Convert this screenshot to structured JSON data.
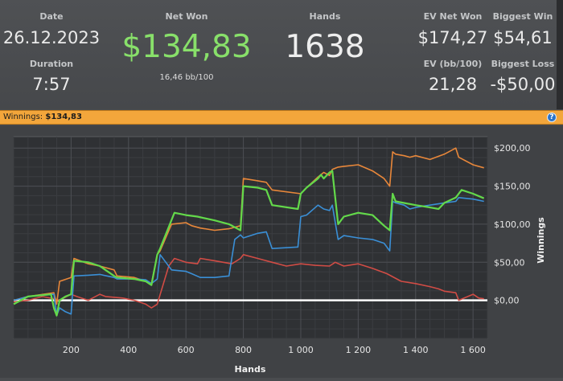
{
  "stats": {
    "date_label": "Date",
    "date_value": "26.12.2023",
    "duration_label": "Duration",
    "duration_value": "7:57",
    "net_won_label": "Net Won",
    "net_won_value": "$134,83",
    "bb_per_100": "16,46 bb/100",
    "hands_label": "Hands",
    "hands_value": "1638",
    "ev_net_won_label": "EV Net Won",
    "ev_net_won_value": "$174,27",
    "biggest_win_label": "Biggest Win",
    "biggest_win_value": "$54,61",
    "ev_bb_label": "EV (bb/100)",
    "ev_bb_value": "21,28",
    "biggest_loss_label": "Biggest Loss",
    "biggest_loss_value": "-$50,00"
  },
  "winnings_bar": {
    "label": "Winnings:",
    "value": "$134,83",
    "help_icon": "question-mark-icon"
  },
  "colors": {
    "green": "#63d94a",
    "orange": "#e8873a",
    "blue": "#3a8fd6",
    "red": "#d14c45",
    "zero_line": "#ffffff",
    "accent_bar": "#f3a63b"
  },
  "chart_data": {
    "type": "line",
    "xlabel": "Hands",
    "ylabel": "Winnings",
    "xlim": [
      0,
      1650
    ],
    "ylim": [
      -50,
      215
    ],
    "x_ticks": [
      200,
      400,
      600,
      800,
      1000,
      1200,
      1400,
      1600
    ],
    "x_tick_labels": [
      "200",
      "400",
      "600",
      "800",
      "1 000",
      "1 200",
      "1 400",
      "1 600"
    ],
    "y_ticks": [
      0,
      50,
      100,
      150,
      200
    ],
    "y_tick_labels": [
      "$0,00",
      "$50,00",
      "$100,00",
      "$150,00",
      "$200,00"
    ],
    "grid": true,
    "series": [
      {
        "color": "#e8873a",
        "x": [
          0,
          50,
          140,
          150,
          160,
          200,
          210,
          260,
          300,
          350,
          360,
          420,
          460,
          480,
          500,
          510,
          550,
          600,
          620,
          650,
          700,
          750,
          770,
          790,
          800,
          850,
          880,
          900,
          1000,
          1020,
          1060,
          1080,
          1100,
          1110,
          1130,
          1150,
          1200,
          1250,
          1290,
          1310,
          1320,
          1330,
          1360,
          1380,
          1400,
          1450,
          1500,
          1540,
          1550,
          1600,
          1638
        ],
        "y": [
          0,
          5,
          10,
          -5,
          25,
          30,
          55,
          48,
          45,
          40,
          32,
          30,
          25,
          22,
          60,
          65,
          100,
          102,
          98,
          95,
          92,
          94,
          96,
          98,
          160,
          157,
          155,
          145,
          140,
          148,
          162,
          168,
          164,
          172,
          175,
          176,
          178,
          170,
          160,
          150,
          195,
          192,
          190,
          188,
          190,
          185,
          192,
          200,
          188,
          178,
          174
        ]
      },
      {
        "color": "#63d94a",
        "x": [
          0,
          50,
          130,
          140,
          150,
          160,
          180,
          200,
          210,
          260,
          300,
          350,
          360,
          420,
          460,
          480,
          500,
          510,
          560,
          600,
          640,
          700,
          750,
          790,
          800,
          850,
          880,
          900,
          990,
          1000,
          1020,
          1060,
          1070,
          1080,
          1100,
          1110,
          1130,
          1150,
          1200,
          1250,
          1290,
          1310,
          1320,
          1330,
          1400,
          1450,
          1480,
          1500,
          1540,
          1560,
          1600,
          1638
        ],
        "y": [
          -5,
          5,
          8,
          -10,
          -20,
          0,
          5,
          8,
          52,
          50,
          45,
          32,
          30,
          28,
          25,
          20,
          60,
          68,
          115,
          112,
          110,
          105,
          100,
          92,
          150,
          148,
          145,
          125,
          120,
          140,
          148,
          160,
          165,
          160,
          168,
          170,
          100,
          110,
          115,
          112,
          98,
          92,
          140,
          130,
          125,
          122,
          120,
          128,
          135,
          145,
          140,
          134
        ]
      },
      {
        "color": "#3a8fd6",
        "x": [
          0,
          50,
          140,
          150,
          160,
          180,
          200,
          210,
          260,
          300,
          350,
          360,
          420,
          460,
          480,
          500,
          510,
          550,
          600,
          620,
          650,
          700,
          750,
          770,
          790,
          800,
          850,
          880,
          900,
          990,
          1000,
          1020,
          1060,
          1080,
          1100,
          1110,
          1130,
          1150,
          1200,
          1250,
          1290,
          1310,
          1320,
          1330,
          1360,
          1380,
          1400,
          1450,
          1500,
          1540,
          1550,
          1600,
          1638
        ],
        "y": [
          0,
          5,
          8,
          -20,
          -10,
          -15,
          -18,
          32,
          33,
          34,
          30,
          28,
          28,
          27,
          22,
          28,
          60,
          40,
          38,
          35,
          30,
          30,
          32,
          80,
          86,
          82,
          88,
          90,
          68,
          70,
          110,
          112,
          125,
          120,
          118,
          125,
          80,
          85,
          82,
          80,
          75,
          65,
          130,
          128,
          125,
          120,
          122,
          125,
          128,
          130,
          135,
          133,
          130
        ]
      },
      {
        "color": "#d14c45",
        "x": [
          0,
          50,
          100,
          140,
          160,
          200,
          220,
          260,
          300,
          320,
          380,
          420,
          460,
          480,
          500,
          540,
          560,
          600,
          640,
          650,
          700,
          760,
          790,
          800,
          850,
          880,
          900,
          950,
          1000,
          1050,
          1100,
          1120,
          1150,
          1200,
          1250,
          1300,
          1350,
          1400,
          1450,
          1480,
          1500,
          1540,
          1550,
          1600,
          1620,
          1638
        ],
        "y": [
          -2,
          0,
          5,
          2,
          0,
          8,
          5,
          0,
          8,
          5,
          3,
          0,
          -5,
          -10,
          -5,
          45,
          55,
          50,
          48,
          55,
          52,
          48,
          55,
          60,
          55,
          52,
          50,
          45,
          48,
          46,
          45,
          50,
          45,
          48,
          42,
          35,
          25,
          22,
          18,
          15,
          12,
          10,
          0,
          8,
          3,
          2
        ]
      }
    ]
  }
}
